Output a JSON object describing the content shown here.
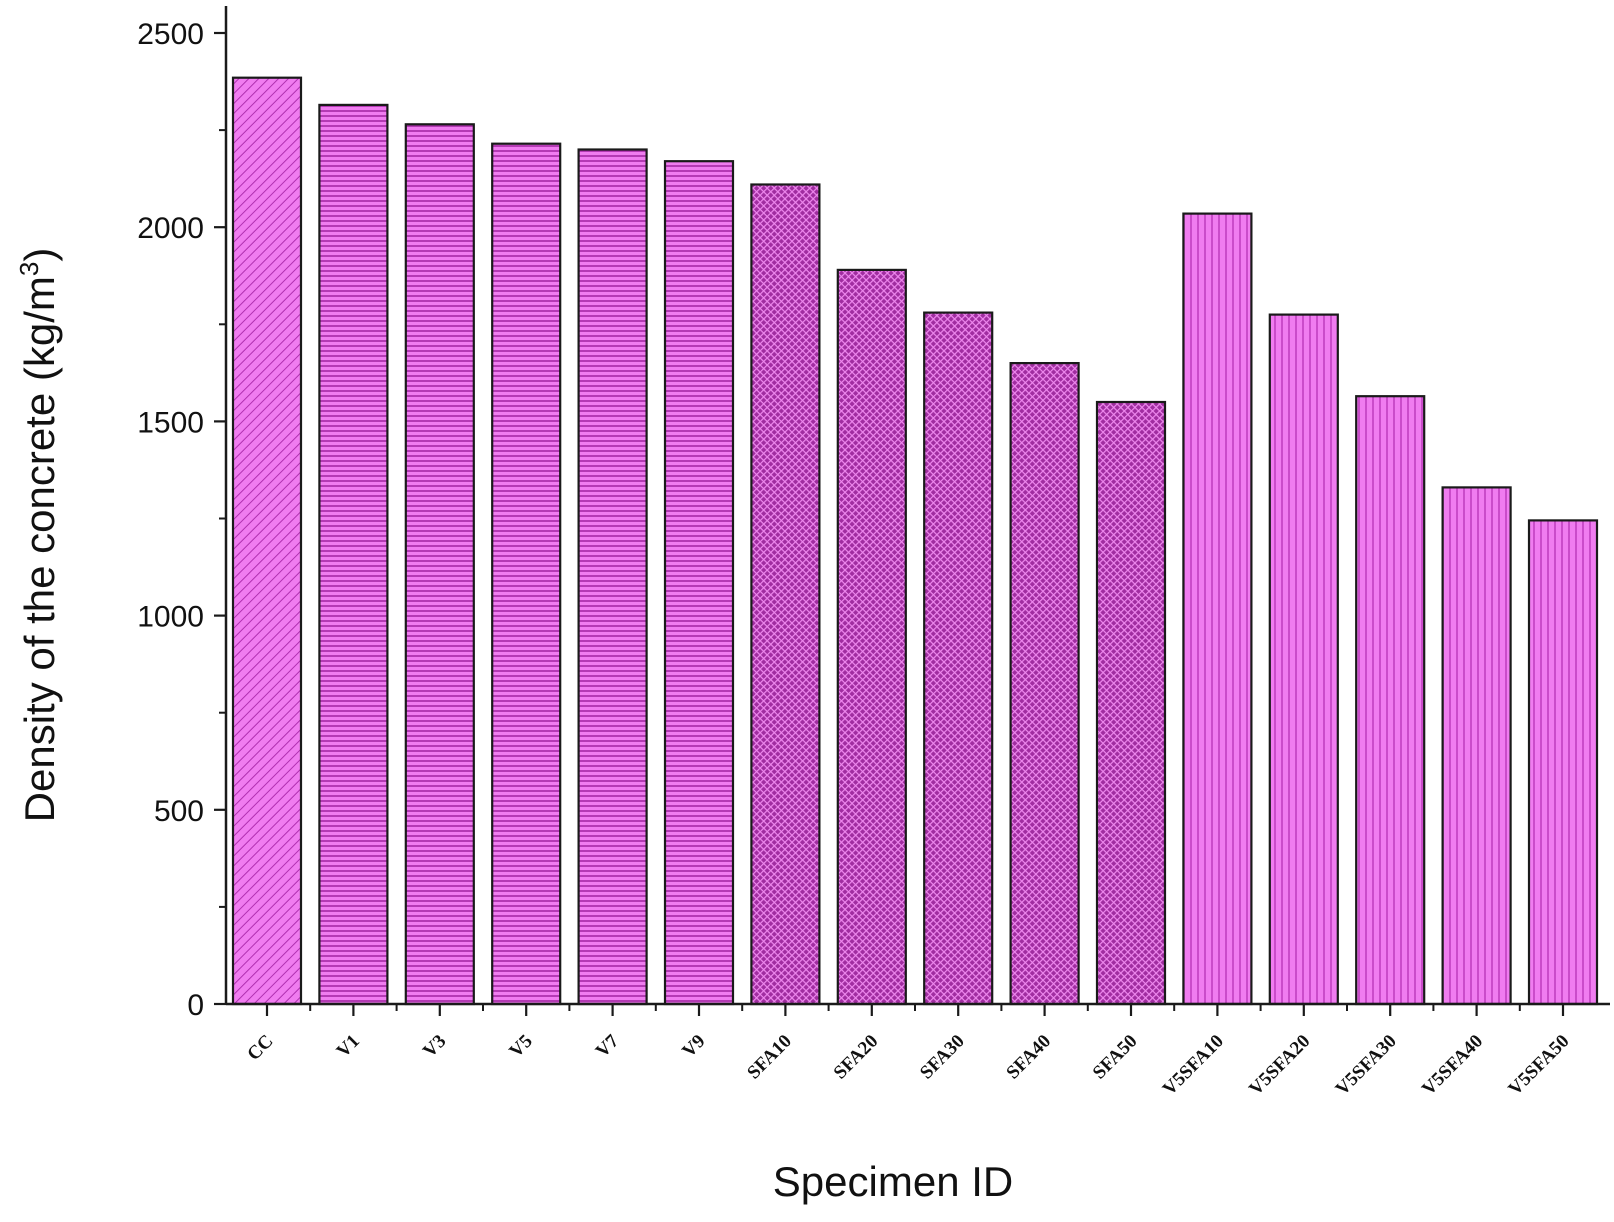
{
  "chart_data": {
    "type": "bar",
    "title": "",
    "xlabel": "Specimen ID",
    "ylabel_main": "Density of the concrete (kg/m",
    "ylabel_sup": "3",
    "ylabel_close": ")",
    "ylabel": "Density of the concrete (kg/m3)",
    "ylim": [
      0,
      2500
    ],
    "yticks": [
      0,
      500,
      1000,
      1500,
      2000,
      2500
    ],
    "yticks_labels": [
      "0",
      "500",
      "1000",
      "1500",
      "2000",
      "2500"
    ],
    "grid": false,
    "legend": "none",
    "categories": [
      "CC",
      "V1",
      "V3",
      "V5",
      "V7",
      "V9",
      "SFA10",
      "SFA20",
      "SFA30",
      "SFA40",
      "SFA50",
      "V5SFA10",
      "V5SFA20",
      "V5SFA30",
      "V5SFA40",
      "V5SFA50"
    ],
    "values": [
      2385,
      2315,
      2265,
      2215,
      2200,
      2170,
      2110,
      1890,
      1780,
      1650,
      1550,
      2035,
      1775,
      1565,
      1330,
      1245
    ],
    "patterns": [
      "diagonal",
      "horizontal",
      "horizontal",
      "horizontal",
      "horizontal",
      "horizontal",
      "crosshatch",
      "crosshatch",
      "crosshatch",
      "crosshatch",
      "crosshatch",
      "vertical",
      "vertical",
      "vertical",
      "vertical",
      "vertical"
    ],
    "colors": {
      "bar_fill": "#f07cf0",
      "diagonal_line": "#b030b0",
      "horizontal_line": "#a52aa5",
      "crosshatch_fill": "#a02da0",
      "crosshatch_line": "#ee88ee",
      "vertical_line": "#c040c0",
      "bar_stroke": "#1a1a1a",
      "axis": "#1a1a1a"
    }
  }
}
